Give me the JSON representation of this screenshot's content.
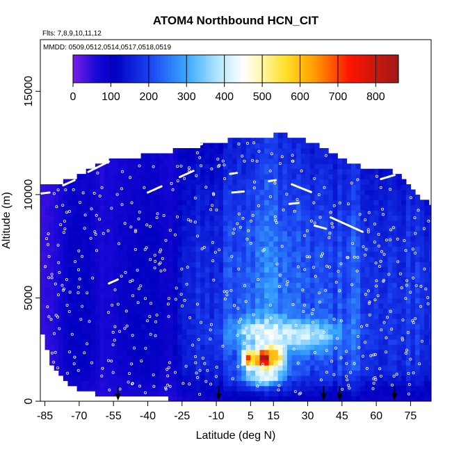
{
  "chart_data": {
    "type": "heatmap",
    "title": "ATOM4 Northbound HCN_CIT",
    "subtitle_flights": "Flts: 7,8,9,10,11,12",
    "subtitle_dates": "MMDD: 0509,0512,0514,0517,0518,0519",
    "xlabel": "Latitude (deg N)",
    "ylabel": "Altitude (m)",
    "xlim": [
      -87,
      84
    ],
    "ylim": [
      0,
      17500
    ],
    "x_ticks": [
      "-85",
      "-70",
      "-55",
      "-40",
      "-25",
      "-10",
      "5",
      "15",
      "30",
      "45",
      "60",
      "75"
    ],
    "x_tick_values": [
      -85,
      -70,
      -55,
      -40,
      -25,
      -10,
      5,
      15,
      30,
      45,
      60,
      75
    ],
    "y_ticks": [
      "0",
      "5000",
      "10000",
      "15000"
    ],
    "y_tick_values": [
      0,
      5000,
      10000,
      15000
    ],
    "colorbar": {
      "min": 0,
      "max": 860,
      "tick_labels": [
        "0",
        "100",
        "200",
        "300",
        "400",
        "500",
        "600",
        "700",
        "800"
      ],
      "tick_values": [
        0,
        100,
        200,
        300,
        400,
        500,
        600,
        700,
        800
      ],
      "stops": [
        {
          "v": 0,
          "c": "#7a1fe6"
        },
        {
          "v": 60,
          "c": "#1a08d8"
        },
        {
          "v": 110,
          "c": "#0000c0"
        },
        {
          "v": 200,
          "c": "#1a40f0"
        },
        {
          "v": 300,
          "c": "#38a8ff"
        },
        {
          "v": 380,
          "c": "#aee4ff"
        },
        {
          "v": 450,
          "c": "#ffffff"
        },
        {
          "v": 500,
          "c": "#fff7a8"
        },
        {
          "v": 560,
          "c": "#ffe02a"
        },
        {
          "v": 640,
          "c": "#ff9a00"
        },
        {
          "v": 730,
          "c": "#ff1400"
        },
        {
          "v": 860,
          "c": "#a01818"
        }
      ]
    },
    "colorbar_position": "top-left inside plot",
    "upper_profile": [
      [
        -87,
        10400
      ],
      [
        -80,
        10500
      ],
      [
        -70,
        10900
      ],
      [
        -60,
        11500
      ],
      [
        -52,
        11800
      ],
      [
        -40,
        11900
      ],
      [
        -25,
        12200
      ],
      [
        -10,
        12500
      ],
      [
        0,
        12800
      ],
      [
        20,
        12900
      ],
      [
        35,
        12400
      ],
      [
        45,
        11700
      ],
      [
        55,
        11300
      ],
      [
        63,
        11300
      ],
      [
        70,
        11000
      ],
      [
        75,
        10300
      ],
      [
        80,
        9800
      ],
      [
        84,
        9500
      ]
    ],
    "lower_profile": [
      [
        -87,
        3500
      ],
      [
        -82,
        1800
      ],
      [
        -77,
        1000
      ],
      [
        -70,
        600
      ],
      [
        -60,
        300
      ],
      [
        -50,
        200
      ],
      [
        -40,
        150
      ],
      [
        -20,
        100
      ],
      [
        0,
        100
      ],
      [
        40,
        100
      ],
      [
        84,
        100
      ]
    ],
    "latitude_columns": [
      [
        -87,
        0.0
      ],
      [
        -80,
        0.15
      ],
      [
        -75,
        0.5
      ],
      [
        -70,
        0.55
      ],
      [
        -65,
        0.5
      ],
      [
        -60,
        0.2
      ],
      [
        -55,
        0.3
      ],
      [
        -50,
        0.5
      ],
      [
        -45,
        0.55
      ],
      [
        -40,
        0.6
      ],
      [
        -35,
        0.5
      ],
      [
        -30,
        0.4
      ],
      [
        -25,
        0.8
      ],
      [
        -20,
        1.0
      ],
      [
        -15,
        1.1
      ],
      [
        -10,
        1.0
      ],
      [
        -5,
        1.4
      ],
      [
        0,
        1.5
      ],
      [
        5,
        1.7
      ],
      [
        10,
        1.8
      ],
      [
        15,
        1.75
      ],
      [
        20,
        1.6
      ],
      [
        25,
        1.55
      ],
      [
        30,
        1.5
      ],
      [
        35,
        1.4
      ],
      [
        40,
        1.3
      ],
      [
        45,
        1.4
      ],
      [
        50,
        1.5
      ],
      [
        55,
        1.3
      ],
      [
        60,
        1.0
      ],
      [
        65,
        1.1
      ],
      [
        70,
        1.2
      ],
      [
        75,
        1.2
      ],
      [
        80,
        1.1
      ],
      [
        84,
        1.0
      ]
    ],
    "altitude_modifier": [
      [
        0,
        0.3
      ],
      [
        1500,
        0.9
      ],
      [
        3000,
        1.0
      ],
      [
        5000,
        1.0
      ],
      [
        7000,
        0.95
      ],
      [
        9000,
        0.85
      ],
      [
        11000,
        0.7
      ],
      [
        13000,
        0.6
      ]
    ],
    "hotspots": [
      {
        "lat": 11,
        "alt": 2100,
        "v": 820,
        "dlat": 5,
        "dalt": 500
      },
      {
        "lat": 4,
        "alt": 2100,
        "v": 700,
        "dlat": 2.5,
        "dalt": 450
      },
      {
        "lat": 16,
        "alt": 2200,
        "v": 560,
        "dlat": 4,
        "dalt": 700
      },
      {
        "lat": 12,
        "alt": 3300,
        "v": 440,
        "dlat": 14,
        "dalt": 700
      },
      {
        "lat": 30,
        "alt": 3200,
        "v": 400,
        "dlat": 14,
        "dalt": 700
      },
      {
        "lat": 10,
        "alt": 1200,
        "v": 430,
        "dlat": 8,
        "dalt": 400
      }
    ],
    "flight_track_segments": [
      [
        [
          -87,
          10050
        ],
        [
          -83,
          10100
        ]
      ],
      [
        [
          -77,
          10450
        ],
        [
          -72,
          10700
        ]
      ],
      [
        [
          -66,
          11100
        ],
        [
          -57,
          11600
        ]
      ],
      [
        [
          -40,
          10100
        ],
        [
          -34,
          10400
        ]
      ],
      [
        [
          -26,
          10850
        ],
        [
          -20,
          11150
        ]
      ],
      [
        [
          -4,
          11000
        ],
        [
          -1,
          11050
        ]
      ],
      [
        [
          -18,
          12400
        ],
        [
          -16,
          12450
        ]
      ],
      [
        [
          -3,
          10100
        ],
        [
          2,
          10150
        ]
      ],
      [
        [
          13,
          10650
        ],
        [
          16,
          10700
        ]
      ],
      [
        [
          23,
          10500
        ],
        [
          32,
          10100
        ]
      ],
      [
        [
          40,
          8900
        ],
        [
          54,
          8200
        ]
      ],
      [
        [
          33,
          8500
        ],
        [
          38,
          8350
        ]
      ],
      [
        [
          62,
          10750
        ],
        [
          68,
          10950
        ]
      ],
      [
        [
          -57,
          5700
        ],
        [
          -53,
          5900
        ]
      ],
      [
        [
          22,
          9550
        ],
        [
          26,
          9600
        ]
      ]
    ],
    "sample_points": 520,
    "arrows_latitudes": [
      -53,
      -9,
      37,
      44,
      68
    ],
    "grid": false
  }
}
